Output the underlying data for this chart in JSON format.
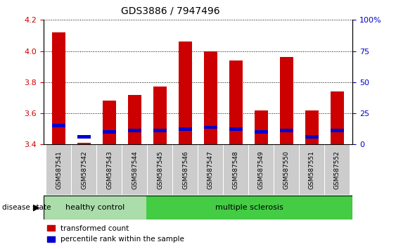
{
  "title": "GDS3886 / 7947496",
  "samples": [
    "GSM587541",
    "GSM587542",
    "GSM587543",
    "GSM587544",
    "GSM587545",
    "GSM587546",
    "GSM587547",
    "GSM587548",
    "GSM587549",
    "GSM587550",
    "GSM587551",
    "GSM587552"
  ],
  "red_values": [
    4.12,
    3.41,
    3.68,
    3.72,
    3.77,
    4.06,
    4.0,
    3.94,
    3.62,
    3.96,
    3.62,
    3.74
  ],
  "blue_values": [
    3.52,
    3.45,
    3.48,
    3.49,
    3.49,
    3.5,
    3.51,
    3.5,
    3.48,
    3.49,
    3.45,
    3.49
  ],
  "y_min": 3.4,
  "y_max": 4.2,
  "y_ticks_left": [
    3.4,
    3.6,
    3.8,
    4.0,
    4.2
  ],
  "y_ticks_right": [
    0,
    25,
    50,
    75,
    100
  ],
  "right_y_labels": [
    "0",
    "25",
    "50",
    "75",
    "100%"
  ],
  "bar_color": "#cc0000",
  "blue_color": "#0000cc",
  "healthy_count": 4,
  "ms_count": 8,
  "healthy_label": "healthy control",
  "ms_label": "multiple sclerosis",
  "disease_state_label": "disease state",
  "legend_red": "transformed count",
  "legend_blue": "percentile rank within the sample",
  "bar_width": 0.55,
  "healthy_bg": "#aaddaa",
  "ms_bg": "#44cc44",
  "tick_label_color_left": "#cc0000",
  "tick_label_color_right": "#0000cc",
  "xlabel_bg": "#cccccc"
}
